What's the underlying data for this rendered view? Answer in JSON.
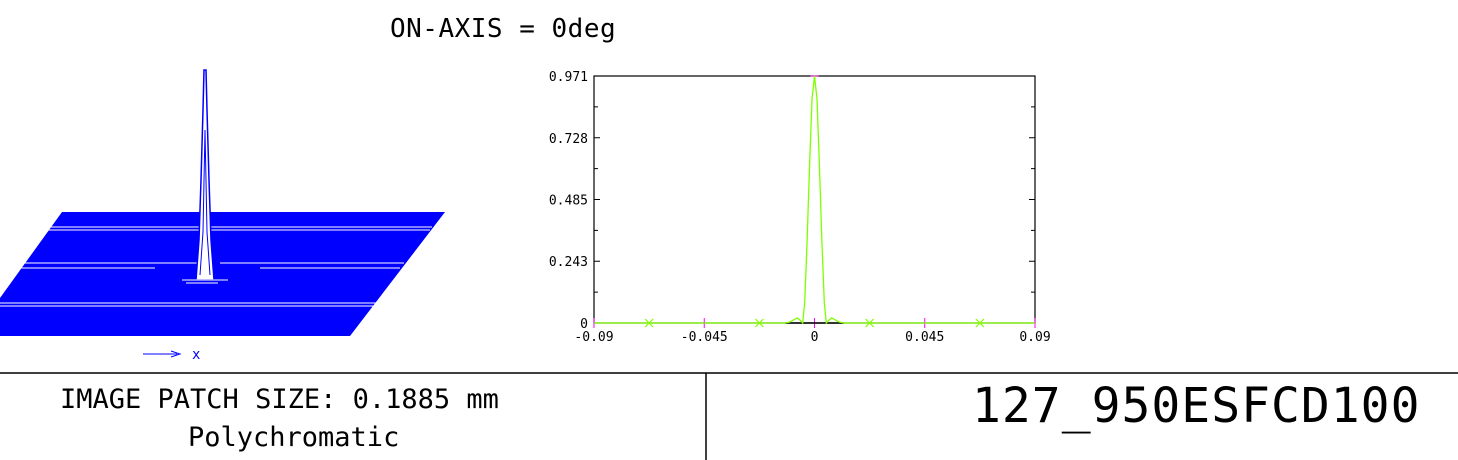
{
  "header": {
    "title": "ON-AXIS = 0deg"
  },
  "footer": {
    "patch_size": "IMAGE PATCH SIZE: 0.1885 mm",
    "mode": "Polychromatic",
    "design_name": "127_950ESFCD100"
  },
  "surface_plot": {
    "axis_label": "x",
    "color": "#0000ff"
  },
  "chart_data": {
    "type": "line",
    "title": "",
    "xlabel": "",
    "ylabel": "",
    "xlim": [
      -0.09,
      0.09
    ],
    "ylim": [
      0,
      0.971
    ],
    "x_ticks": [
      "-0.09",
      "-0.045",
      "0",
      "0.045",
      "0.09"
    ],
    "x_tick_values": [
      -0.09,
      -0.045,
      0,
      0.045,
      0.09
    ],
    "y_ticks": [
      "0",
      "0.243",
      "0.485",
      "0.728",
      "0.971"
    ],
    "y_tick_values": [
      0,
      0.243,
      0.485,
      0.728,
      0.971
    ],
    "grid": false,
    "series": [
      {
        "color": "#80ff00",
        "x": [
          -0.09,
          -0.012,
          -0.01,
          -0.008,
          -0.007,
          -0.006,
          -0.0048,
          -0.004,
          -0.003,
          -0.0025,
          -0.002,
          -0.001,
          0,
          0.001,
          0.002,
          0.0025,
          0.003,
          0.004,
          0.0048,
          0.006,
          0.007,
          0.008,
          0.01,
          0.012,
          0.09
        ],
        "y": [
          0,
          0,
          0.004,
          0.015,
          0.02,
          0.012,
          0,
          0.08,
          0.32,
          0.48,
          0.62,
          0.88,
          0.971,
          0.88,
          0.62,
          0.48,
          0.32,
          0.08,
          0,
          0.012,
          0.02,
          0.015,
          0.004,
          0,
          0
        ]
      }
    ],
    "markers_x": [
      -0.0675,
      -0.0225,
      0.0225,
      0.0675
    ],
    "marker_color": "#80ff00",
    "tick_color": "#ff00ff"
  }
}
